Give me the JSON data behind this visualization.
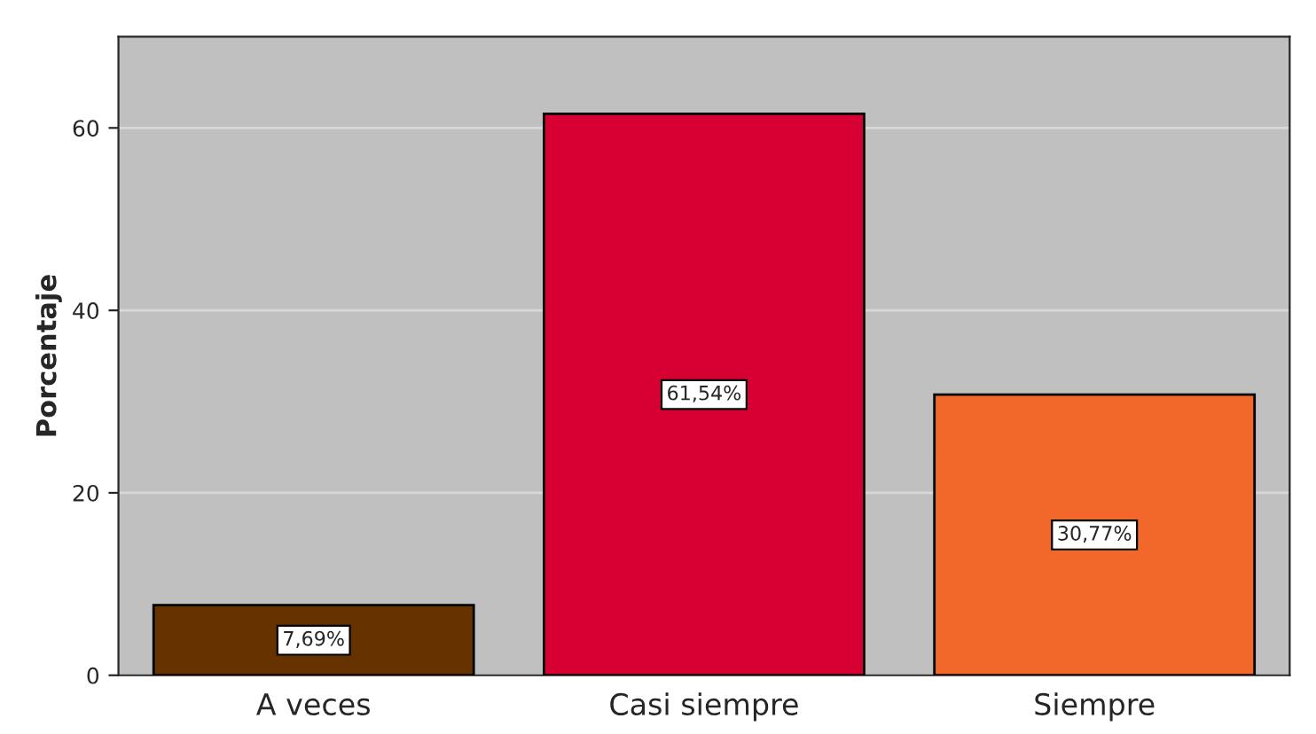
{
  "chart_data": {
    "type": "bar",
    "ylabel": "Porcentaje",
    "categories": [
      "A veces",
      "Casi siempre",
      "Siempre"
    ],
    "values": [
      7.69,
      61.54,
      30.77
    ],
    "colors": [
      "#663300",
      "#d60032",
      "#f2682a"
    ],
    "value_labels": [
      "7,69%",
      "61,54%",
      "30,77%"
    ],
    "ylim": [
      0,
      70
    ],
    "yticks": [
      0,
      20,
      40,
      60
    ],
    "grid": "y"
  }
}
